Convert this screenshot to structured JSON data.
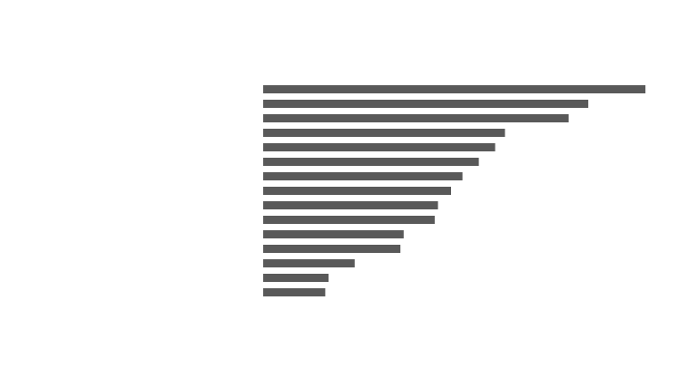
{
  "colors": {
    "bar": "#595959",
    "background": "#ffffff"
  },
  "chart_data": {
    "type": "bar",
    "orientation": "horizontal",
    "title": "",
    "xlabel": "",
    "ylabel": "",
    "categories": [
      "",
      "",
      "",
      "",
      "",
      "",
      "",
      "",
      "",
      "",
      "",
      "",
      "",
      "",
      ""
    ],
    "values": [
      117,
      99.5,
      93.5,
      74,
      71,
      66,
      61,
      57.5,
      53.5,
      52.5,
      43,
      42,
      28,
      20,
      19
    ],
    "xlim": [
      0,
      130
    ],
    "grid": false,
    "legend": "none"
  }
}
